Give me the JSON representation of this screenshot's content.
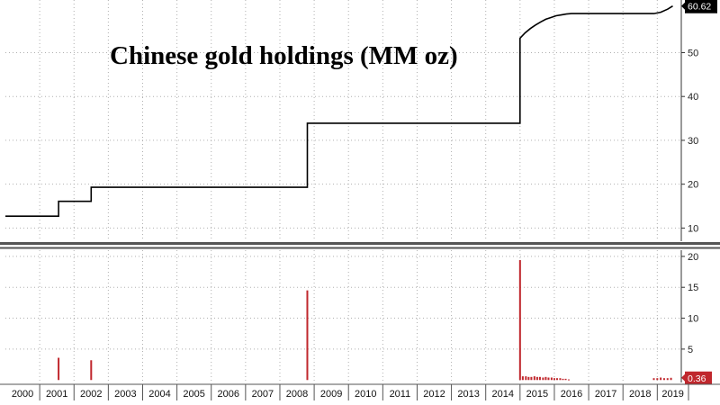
{
  "chart_data": [
    {
      "type": "line",
      "title": "Chinese gold holdings (MM oz)",
      "last_value_label": "60.62",
      "yticks": [
        10,
        20,
        30,
        40,
        50
      ],
      "ylim": [
        7,
        62
      ],
      "xlim": [
        2000,
        2019.7
      ],
      "series": [
        {
          "color": "#000000",
          "x": [
            2000.0,
            2001.55,
            2001.55,
            2002.5,
            2002.5,
            2008.8,
            2008.8,
            2015.0,
            2015.0,
            2015.15,
            2015.3,
            2015.45,
            2015.6,
            2015.75,
            2015.9,
            2016.05,
            2016.2,
            2016.35,
            2016.5,
            2016.7,
            2017.0,
            2018.9,
            2019.1,
            2019.3,
            2019.45
          ],
          "y": [
            12.7,
            12.7,
            16.1,
            16.1,
            19.3,
            19.3,
            33.9,
            33.9,
            53.3,
            54.5,
            55.5,
            56.3,
            57.0,
            57.6,
            58.0,
            58.4,
            58.6,
            58.8,
            58.9,
            58.9,
            58.9,
            58.9,
            59.2,
            59.9,
            60.62
          ]
        }
      ]
    },
    {
      "type": "bar",
      "last_value_label": "0.36",
      "yticks": [
        5,
        10,
        15,
        20
      ],
      "ylim": [
        -0.4,
        21
      ],
      "xlim": [
        2000,
        2019.7
      ],
      "series": [
        {
          "color": "#c0272d",
          "x": [
            2001.55,
            2002.5,
            2008.8,
            2015.0,
            2015.08,
            2015.17,
            2015.25,
            2015.33,
            2015.42,
            2015.5,
            2015.58,
            2015.67,
            2015.75,
            2015.83,
            2015.92,
            2016.0,
            2016.08,
            2016.17,
            2016.25,
            2016.33,
            2016.42,
            2018.9,
            2019.0,
            2019.1,
            2019.2,
            2019.3,
            2019.4
          ],
          "values": [
            3.6,
            3.2,
            14.5,
            19.4,
            0.6,
            0.6,
            0.5,
            0.5,
            0.6,
            0.5,
            0.5,
            0.4,
            0.5,
            0.4,
            0.4,
            0.3,
            0.3,
            0.3,
            0.2,
            0.2,
            0.1,
            0.3,
            0.3,
            0.4,
            0.3,
            0.3,
            0.36
          ]
        }
      ]
    }
  ],
  "x_axis": {
    "ticks": [
      "2000",
      "2001",
      "2002",
      "2003",
      "2004",
      "2005",
      "2006",
      "2007",
      "2008",
      "2009",
      "2010",
      "2011",
      "2012",
      "2013",
      "2014",
      "2015",
      "2016",
      "2017",
      "2018",
      "2019"
    ]
  },
  "colors": {
    "line": "#000000",
    "bars": "#c0272d",
    "last_value_badge": "#c0272d",
    "line_badge": "#000000",
    "grid": "#b0b0b0",
    "separator": "#555555"
  }
}
